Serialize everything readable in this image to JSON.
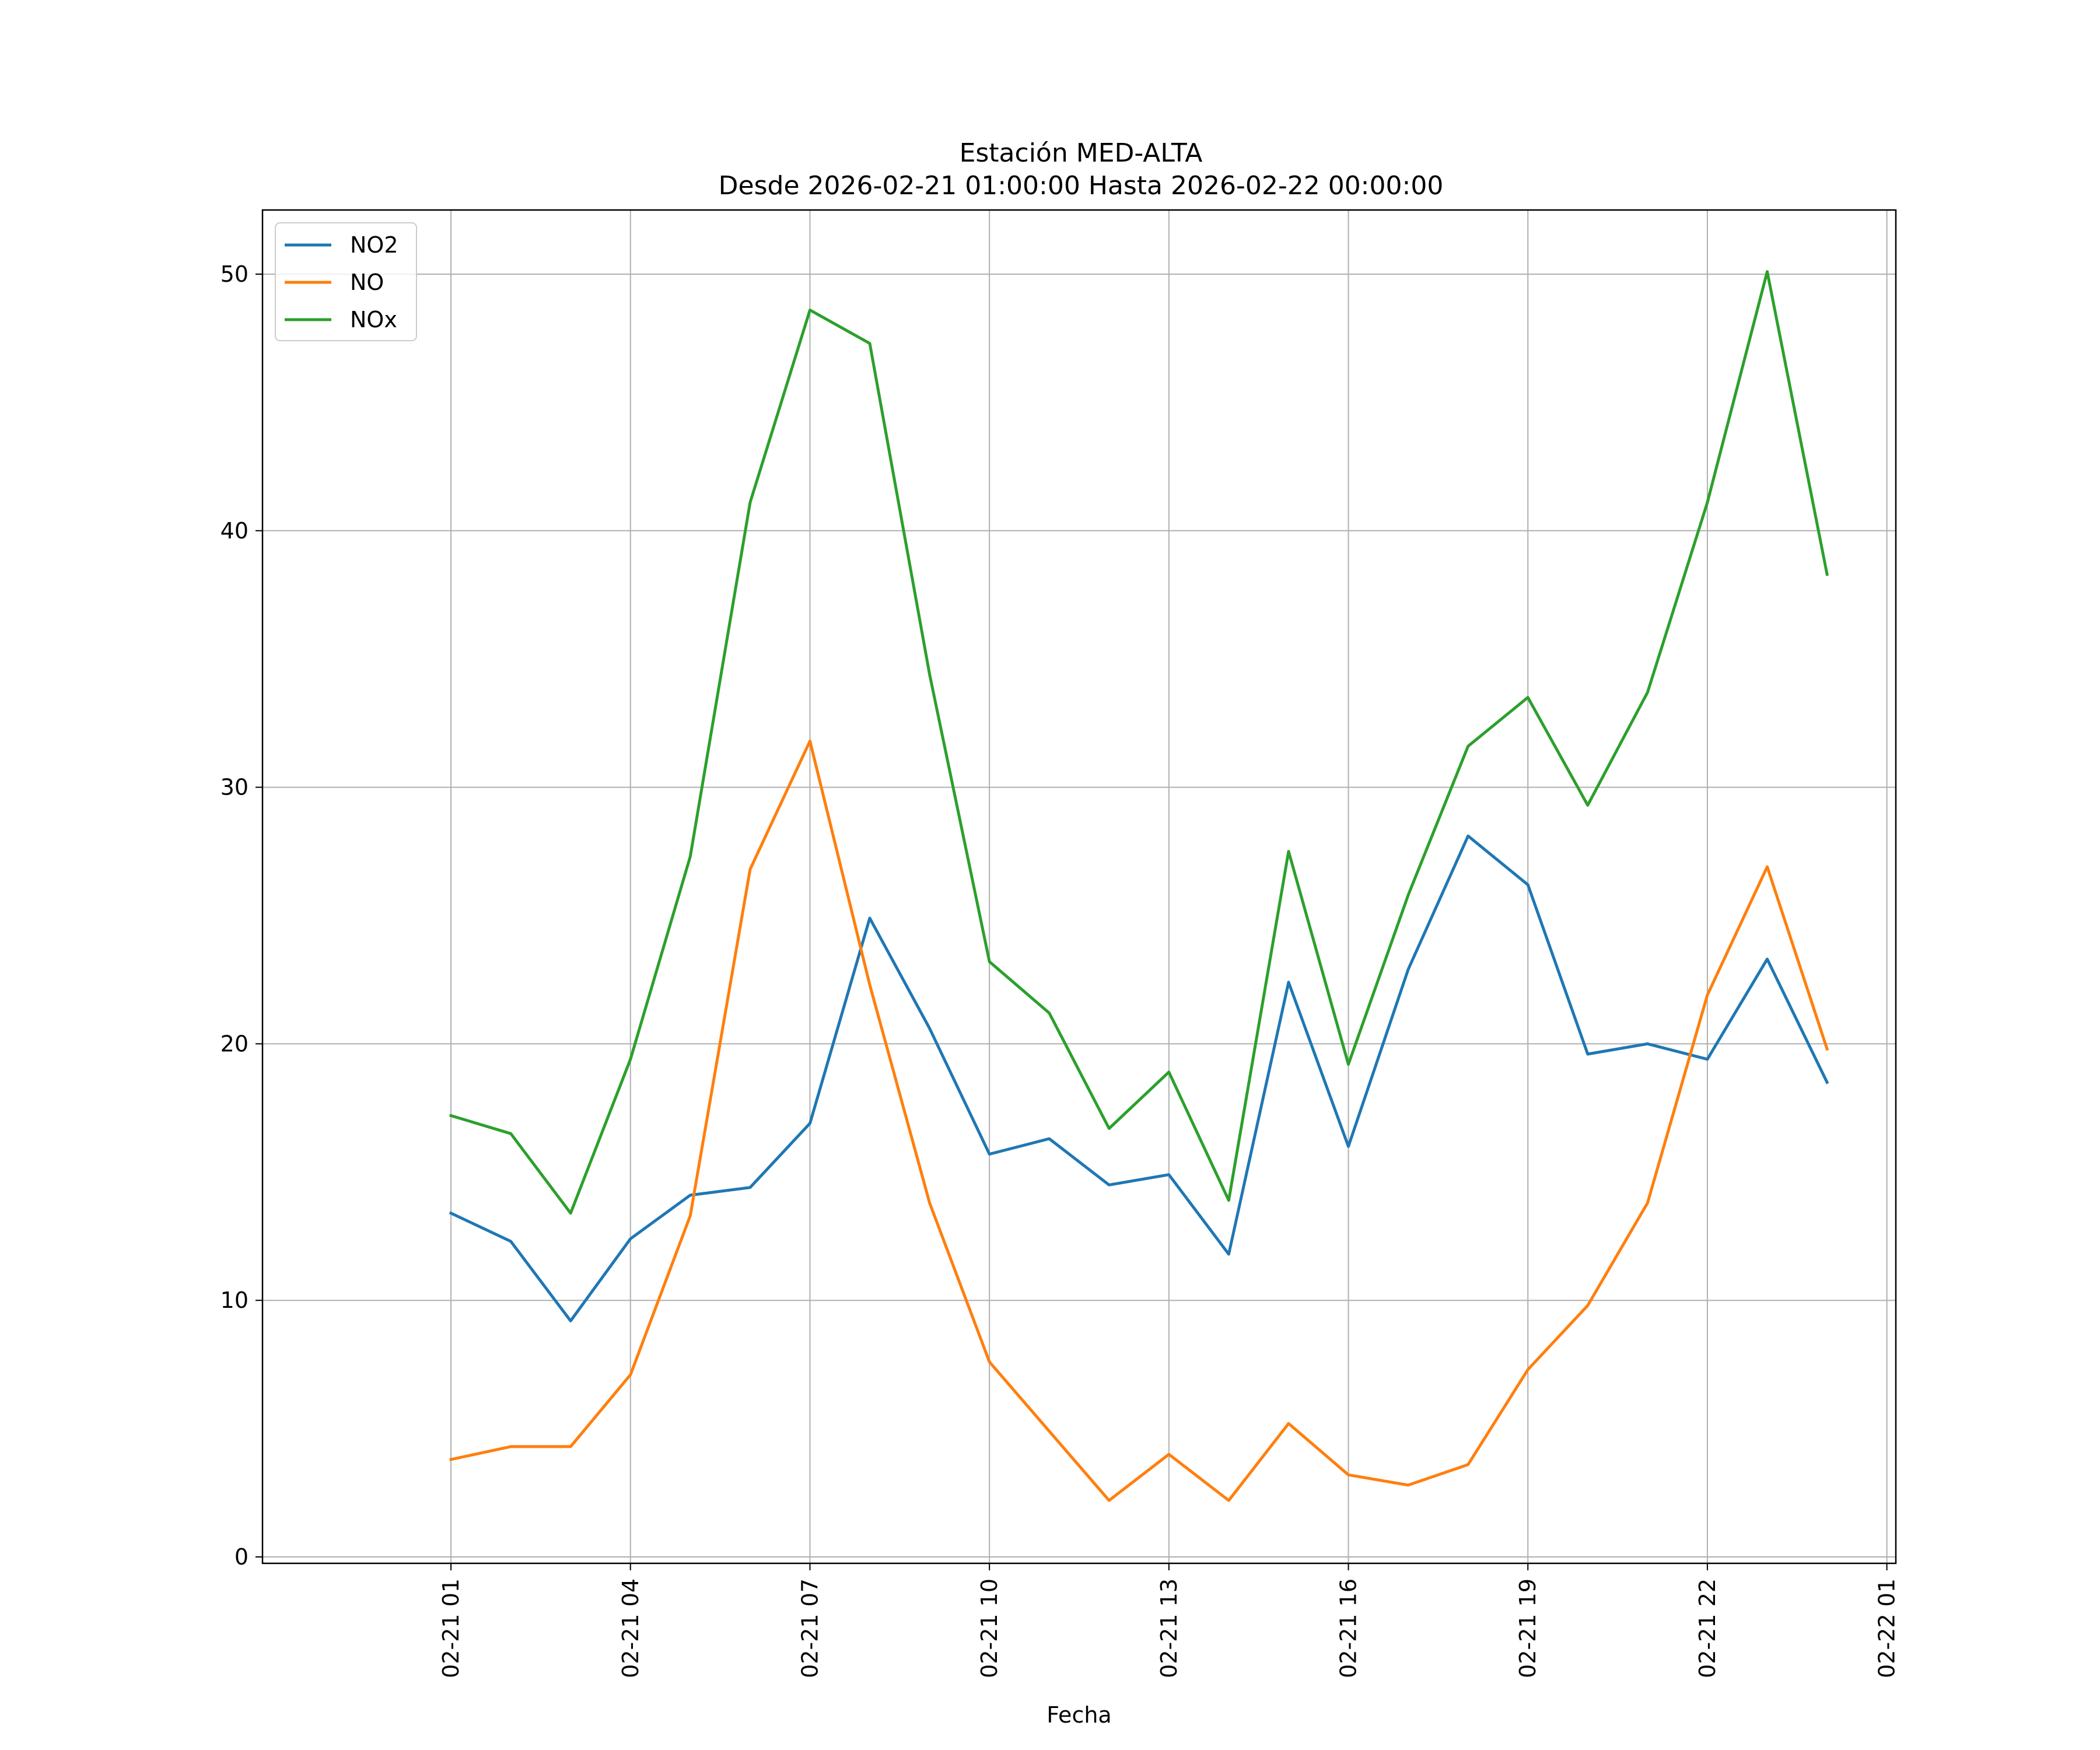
{
  "chart_data": {
    "type": "line",
    "title": "Estación MED-ALTA",
    "subtitle": "Desde 2026-02-21 01:00:00 Hasta 2026-02-22 00:00:00",
    "xlabel": "Fecha",
    "ylabel": "",
    "x": [
      "2026-02-21 01:00",
      "2026-02-21 02:00",
      "2026-02-21 03:00",
      "2026-02-21 04:00",
      "2026-02-21 05:00",
      "2026-02-21 06:00",
      "2026-02-21 07:00",
      "2026-02-21 08:00",
      "2026-02-21 09:00",
      "2026-02-21 10:00",
      "2026-02-21 11:00",
      "2026-02-21 12:00",
      "2026-02-21 13:00",
      "2026-02-21 14:00",
      "2026-02-21 15:00",
      "2026-02-21 16:00",
      "2026-02-21 17:00",
      "2026-02-21 18:00",
      "2026-02-21 19:00",
      "2026-02-21 20:00",
      "2026-02-21 21:00",
      "2026-02-21 22:00",
      "2026-02-21 23:00",
      "2026-02-22 00:00"
    ],
    "xlim": [
      "2026-02-20 21:51",
      "2026-02-22 01:09"
    ],
    "ylim": [
      -0.25,
      52.5
    ],
    "x_tick_labels": [
      "02-21 01",
      "02-21 04",
      "02-21 07",
      "02-21 10",
      "02-21 13",
      "02-21 16",
      "02-21 19",
      "02-21 22",
      "02-22 01"
    ],
    "x_ticks": [
      "2026-02-21 01:00",
      "2026-02-21 04:00",
      "2026-02-21 07:00",
      "2026-02-21 10:00",
      "2026-02-21 13:00",
      "2026-02-21 16:00",
      "2026-02-21 19:00",
      "2026-02-21 22:00",
      "2026-02-22 01:00"
    ],
    "y_tick_labels": [
      "0",
      "10",
      "20",
      "30",
      "40",
      "50"
    ],
    "y_ticks": [
      0,
      10,
      20,
      30,
      40,
      50
    ],
    "grid": true,
    "legend_position": "top-left",
    "series": [
      {
        "name": "NO2",
        "color": "#1f77b4",
        "values": [
          13.4,
          12.3,
          9.2,
          12.4,
          14.1,
          14.4,
          16.9,
          24.9,
          20.6,
          15.7,
          16.3,
          14.5,
          14.9,
          11.8,
          22.4,
          16.0,
          22.9,
          28.1,
          26.2,
          19.6,
          20.0,
          19.4,
          23.3,
          18.5
        ]
      },
      {
        "name": "NO",
        "color": "#ff7f0e",
        "values": [
          3.8,
          4.3,
          4.3,
          7.1,
          13.3,
          26.8,
          31.8,
          22.3,
          13.8,
          7.6,
          4.9,
          2.2,
          4.0,
          2.2,
          5.2,
          3.2,
          2.8,
          3.6,
          7.3,
          9.8,
          13.8,
          21.9,
          26.9,
          19.8
        ]
      },
      {
        "name": "NOx",
        "color": "#2ca02c",
        "values": [
          17.2,
          16.5,
          13.4,
          19.4,
          27.3,
          41.1,
          48.6,
          47.3,
          34.4,
          23.2,
          21.2,
          16.7,
          18.9,
          13.9,
          27.5,
          19.2,
          25.8,
          31.6,
          33.5,
          29.3,
          33.7,
          41.1,
          50.1,
          38.3
        ]
      }
    ]
  }
}
